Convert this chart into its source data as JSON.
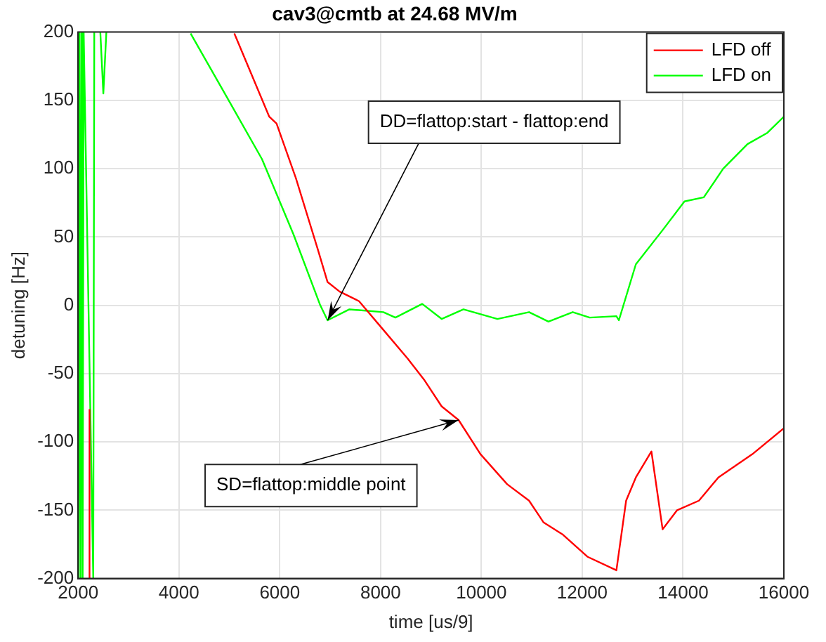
{
  "chart_data": {
    "type": "line",
    "title": "cav3@cmtb at 24.68 MV/m",
    "xlabel": "time [us/9]",
    "ylabel": "detuning [Hz]",
    "xlim": [
      2000,
      16000
    ],
    "xticks": [
      2000,
      4000,
      6000,
      8000,
      10000,
      12000,
      14000,
      16000
    ],
    "ylim": [
      -200,
      200
    ],
    "yticks": [
      -200,
      -150,
      -100,
      -50,
      0,
      50,
      100,
      150,
      200
    ],
    "grid": true,
    "legend": "top right",
    "marker": "none",
    "line_style": "solid",
    "annotations": [
      {
        "text": "DD=flattop:start - flattop:end",
        "x": 6950,
        "y": -11
      },
      {
        "text": "SD=flattop:middle point",
        "x": 9550,
        "y": -84
      }
    ],
    "series": [
      {
        "name": "LFD off",
        "color": "#ff0000",
        "x": [
          2226,
          2226,
          null,
          5098,
          5792,
          5936,
          6320,
          6754,
          6948,
          7188,
          7572,
          8055,
          8537,
          8873,
          9211,
          9548,
          9982,
          10511,
          10945,
          11234,
          11619,
          12101,
          12678,
          12871,
          13064,
          13373,
          13595,
          13883,
          14316,
          14701,
          15375,
          16000
        ],
        "values": [
          -200,
          -76,
          null,
          199,
          138,
          133,
          93,
          41,
          17,
          10,
          3,
          -18,
          -39,
          -55,
          -74,
          -84,
          -109,
          -131,
          -143,
          -159,
          -168,
          -184,
          -194,
          -143,
          -126,
          -107,
          -164,
          -150,
          -143,
          -126,
          -109,
          -90
        ]
      },
      {
        "name": "LFD on",
        "color": "#00ff00",
        "x": [
          2000,
          2010,
          2030,
          2050,
          2070,
          2090,
          2110,
          2300,
          2320,
          null,
          2440,
          2500,
          2560,
          null,
          4231,
          4971,
          5647,
          6271,
          6803,
          6948,
          7381,
          8055,
          8294,
          8826,
          9211,
          9644,
          10318,
          10945,
          11330,
          11812,
          12149,
          12678,
          12727,
          13064,
          13595,
          14028,
          14412,
          14797,
          15279,
          15664,
          16000
        ],
        "values": [
          200,
          -200,
          200,
          -200,
          200,
          -200,
          200,
          -200,
          200,
          null,
          200,
          155,
          200,
          null,
          199,
          151,
          107,
          52,
          0,
          -11,
          -3,
          -5,
          -9,
          1,
          -10,
          -3,
          -10,
          -5,
          -12,
          -5,
          -9,
          -8,
          -11,
          30,
          55,
          76,
          79,
          100,
          118,
          126,
          138
        ]
      }
    ]
  }
}
